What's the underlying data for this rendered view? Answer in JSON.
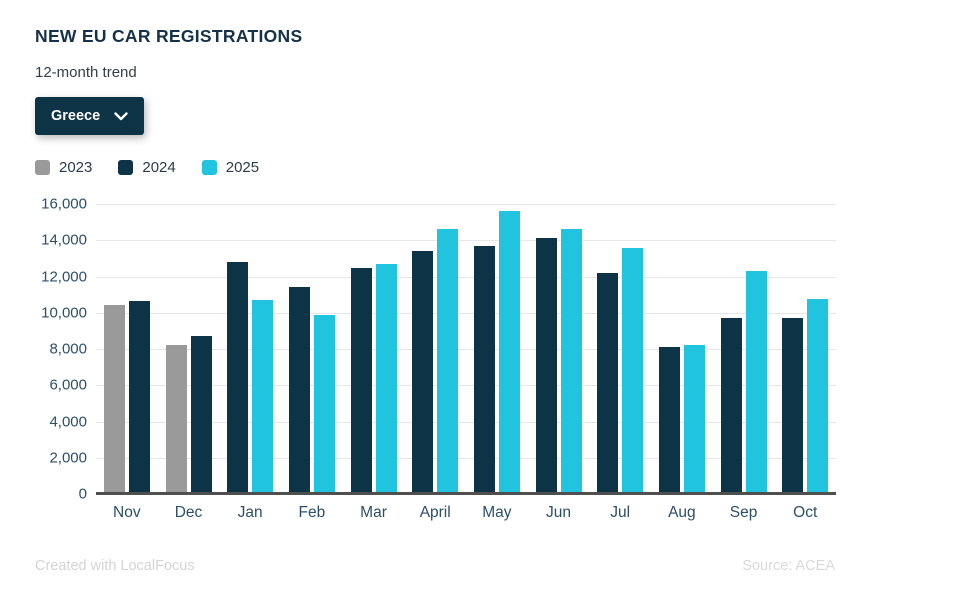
{
  "header": {
    "title": "NEW EU CAR REGISTRATIONS",
    "subtitle": "12-month trend",
    "country_selector": {
      "value": "Greece",
      "icon": "chevron-down-icon"
    }
  },
  "legend": {
    "items": [
      {
        "label": "2023",
        "color": "#9a9a9a"
      },
      {
        "label": "2024",
        "color": "#0d3346"
      },
      {
        "label": "2025",
        "color": "#20c4de"
      }
    ]
  },
  "chart_data": {
    "type": "bar",
    "title": "NEW EU CAR REGISTRATIONS",
    "subtitle": "12-month trend",
    "categories": [
      "Nov",
      "Dec",
      "Jan",
      "Feb",
      "Mar",
      "April",
      "May",
      "Jun",
      "Jul",
      "Aug",
      "Sep",
      "Oct"
    ],
    "series": [
      {
        "name": "2023",
        "color": "#9a9a9a",
        "values": [
          10450,
          8200,
          null,
          null,
          null,
          null,
          null,
          null,
          null,
          null,
          null,
          null
        ]
      },
      {
        "name": "2024",
        "color": "#0d3346",
        "values": [
          10650,
          8700,
          12800,
          11400,
          12450,
          13400,
          13700,
          14100,
          12200,
          8100,
          9700,
          9700
        ]
      },
      {
        "name": "2025",
        "color": "#20c4de",
        "values": [
          null,
          null,
          10700,
          9900,
          12700,
          14600,
          15600,
          14600,
          13600,
          8200,
          12300,
          10750
        ]
      }
    ],
    "ylim": [
      0,
      16000
    ],
    "y_tick_step": 2000,
    "y_ticks": [
      "16,000",
      "14,000",
      "12,000",
      "10,000",
      "8,000",
      "6,000",
      "4,000",
      "2,000",
      "0"
    ],
    "grid": "horizontal",
    "legend_position": "top-left",
    "xlabel": "",
    "ylabel": ""
  },
  "footer": {
    "credit": "Created with LocalFocus",
    "source": "Source:  ACEA"
  },
  "colors": {
    "title_text": "#16324a",
    "axis_text": "#2d4f69",
    "gridline": "#e7e7e7",
    "baseline": "#4f4f4f",
    "dropdown_bg": "#0d3346",
    "dropdown_text": "#ffffff",
    "footer_text": "#d4d4d4",
    "background": "#ffffff"
  }
}
